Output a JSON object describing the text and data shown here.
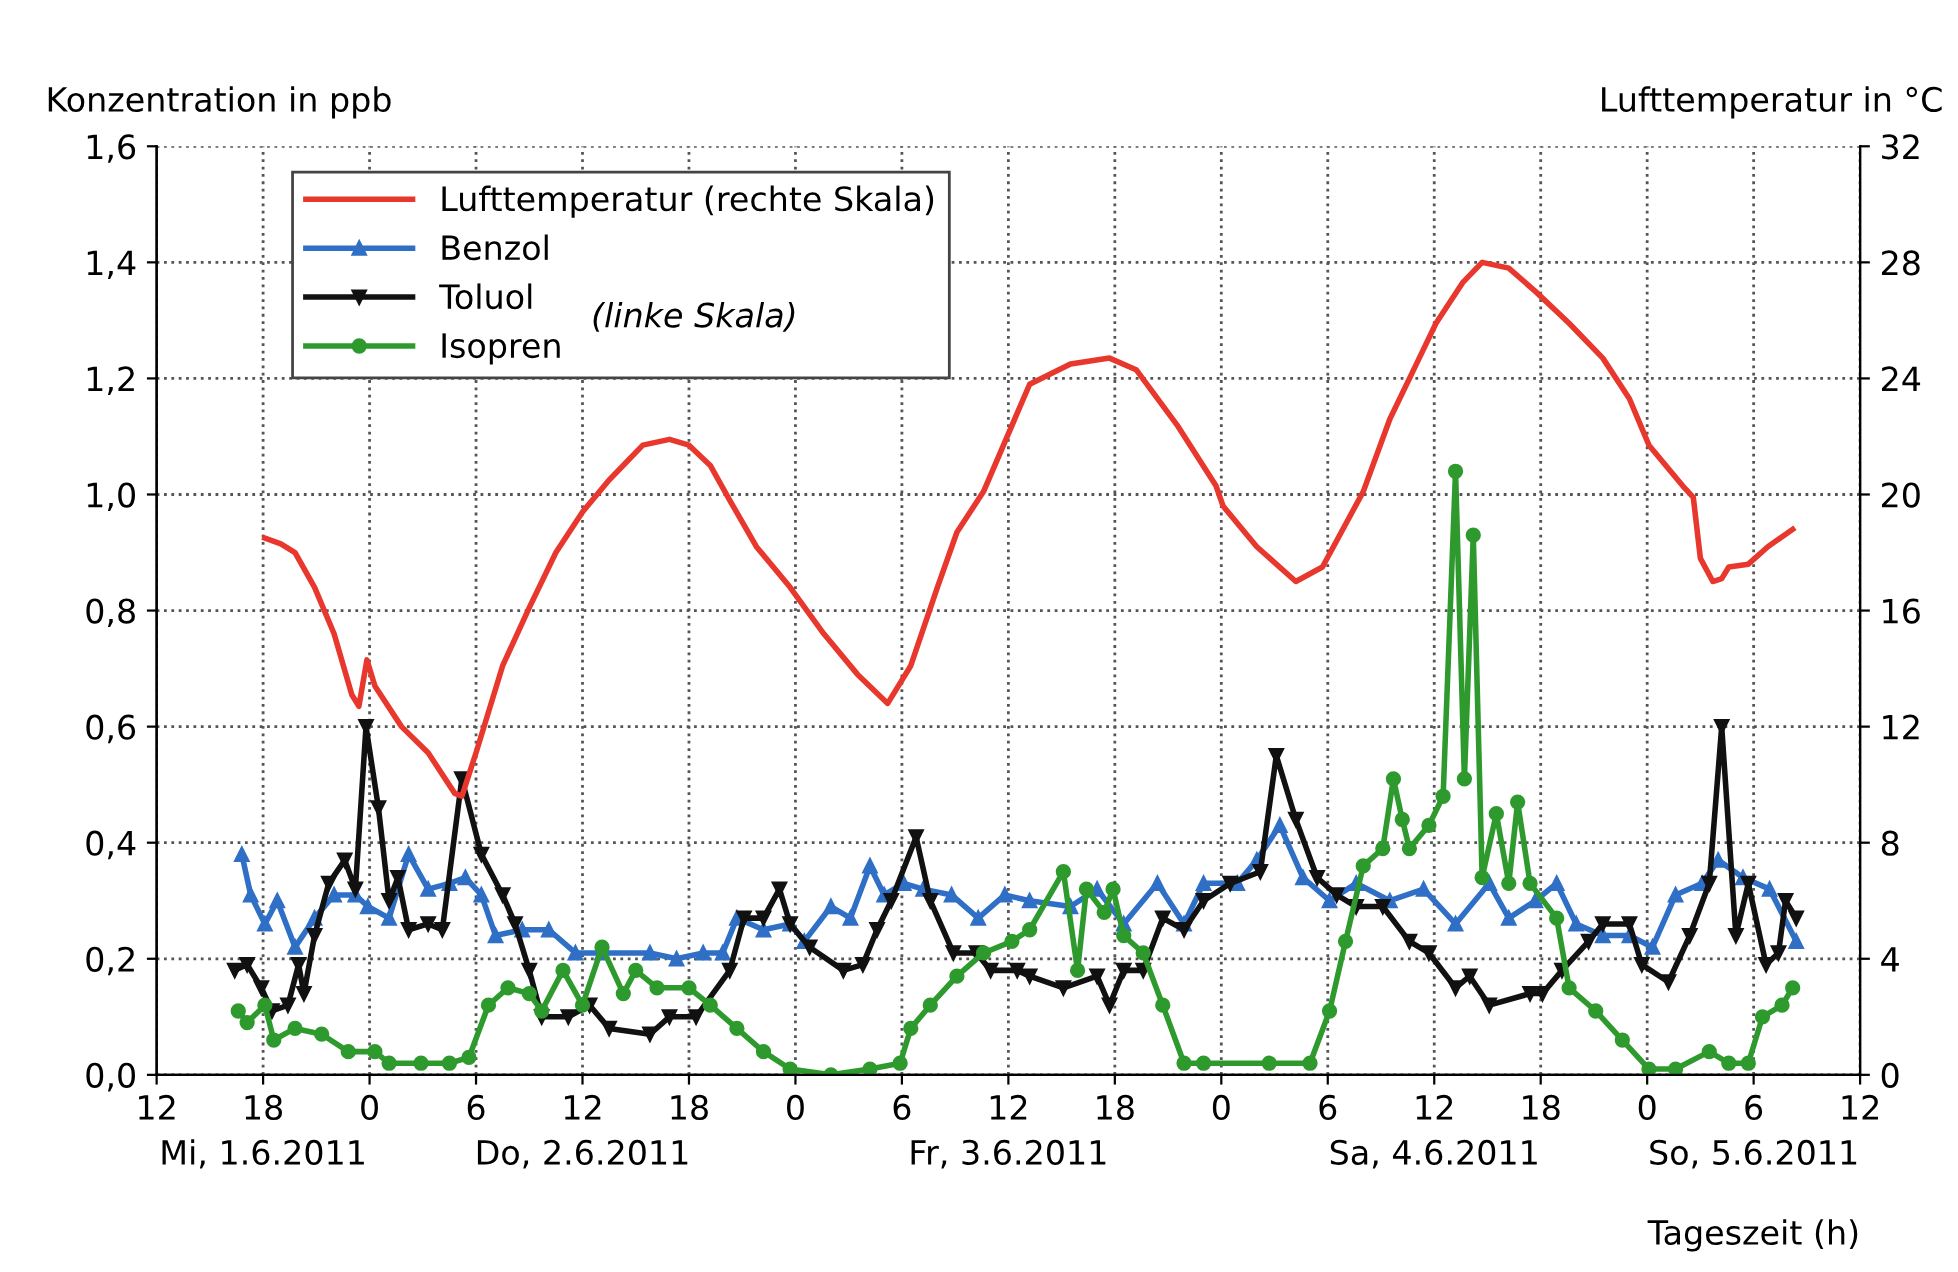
{
  "chart_data": {
    "type": "line",
    "xlabel": "Tageszeit (h)",
    "ylabel": "Konzentration in ppb",
    "y2label": "Lufttemperatur in °C",
    "xlim": [
      "2011-06-01T12:00",
      "2011-06-05T12:00"
    ],
    "xticks": [
      {
        "value": "2011-06-01T12:00",
        "label": "12"
      },
      {
        "value": "2011-06-01T18:00",
        "label": "18\nMi, 1.6.2011"
      },
      {
        "value": "2011-06-02T00:00",
        "label": "0"
      },
      {
        "value": "2011-06-02T06:00",
        "label": "6"
      },
      {
        "value": "2011-06-02T12:00",
        "label": "12\nDo, 2.6.2011"
      },
      {
        "value": "2011-06-02T18:00",
        "label": "18"
      },
      {
        "value": "2011-06-03T00:00",
        "label": "0"
      },
      {
        "value": "2011-06-03T06:00",
        "label": "6"
      },
      {
        "value": "2011-06-03T12:00",
        "label": "12\nFr, 3.6.2011"
      },
      {
        "value": "2011-06-03T18:00",
        "label": "18"
      },
      {
        "value": "2011-06-04T00:00",
        "label": "0"
      },
      {
        "value": "2011-06-04T06:00",
        "label": "6"
      },
      {
        "value": "2011-06-04T12:00",
        "label": "12\nSa, 4.6.2011"
      },
      {
        "value": "2011-06-04T18:00",
        "label": "18"
      },
      {
        "value": "2011-06-05T00:00",
        "label": "0"
      },
      {
        "value": "2011-06-05T06:00",
        "label": "6\nSo, 5.6.2011"
      },
      {
        "value": "2011-06-05T12:00",
        "label": "12"
      }
    ],
    "ylim": [
      0,
      1.6
    ],
    "yticks": [
      {
        "value": 0,
        "label": "0,0"
      },
      {
        "value": 0.2,
        "label": "0,2"
      },
      {
        "value": 0.4,
        "label": "0,4"
      },
      {
        "value": 0.6,
        "label": "0,6"
      },
      {
        "value": 0.8,
        "label": "0,8"
      },
      {
        "value": 1.0,
        "label": "1,0"
      },
      {
        "value": 1.2,
        "label": "1,2"
      },
      {
        "value": 1.4,
        "label": "1,4"
      },
      {
        "value": 1.6,
        "label": "1,6"
      }
    ],
    "y2lim": [
      0,
      32
    ],
    "y2ticks": [
      0,
      4,
      8,
      12,
      16,
      20,
      24,
      28,
      32
    ],
    "grid": true,
    "legend": "top left",
    "annotations": [
      "(linke Skala)"
    ],
    "series": [
      {
        "name": "Lufttemperatur (rechte Skala)",
        "color": "#e8372c",
        "axis": "y2",
        "marker": "none",
        "x": [
          "2011-06-01T18:06",
          "2011-06-01T19:00",
          "2011-06-01T19:48",
          "2011-06-01T20:54",
          "2011-06-01T22:00",
          "2011-06-01T23:00",
          "2011-06-01T23:24",
          "2011-06-01T23:51",
          "2011-06-02T00:18",
          "2011-06-02T01:48",
          "2011-06-02T03:18",
          "2011-06-02T04:48",
          "2011-06-02T05:12",
          "2011-06-02T06:00",
          "2011-06-02T07:30",
          "2011-06-02T09:00",
          "2011-06-02T10:30",
          "2011-06-02T12:00",
          "2011-06-02T13:30",
          "2011-06-02T15:24",
          "2011-06-02T16:54",
          "2011-06-02T18:00",
          "2011-06-02T19:12",
          "2011-06-02T20:18",
          "2011-06-02T21:48",
          "2011-06-02T23:42",
          "2011-06-03T01:36",
          "2011-06-03T03:30",
          "2011-06-03T05:12",
          "2011-06-03T06:30",
          "2011-06-03T08:00",
          "2011-06-03T09:06",
          "2011-06-03T10:36",
          "2011-06-03T13:12",
          "2011-06-03T15:30",
          "2011-06-03T17:42",
          "2011-06-03T19:12",
          "2011-06-03T21:30",
          "2011-06-03T23:42",
          "2011-06-04T00:06",
          "2011-06-04T02:00",
          "2011-06-04T04:12",
          "2011-06-04T05:42",
          "2011-06-04T08:00",
          "2011-06-04T09:30",
          "2011-06-04T11:00",
          "2011-06-04T12:06",
          "2011-06-04T13:36",
          "2011-06-04T14:42",
          "2011-06-04T16:12",
          "2011-06-04T17:42",
          "2011-06-04T19:36",
          "2011-06-04T21:30",
          "2011-06-04T23:00",
          "2011-06-05T00:06",
          "2011-06-05T02:00",
          "2011-06-05T02:36",
          "2011-06-05T03:00",
          "2011-06-05T03:42",
          "2011-06-05T04:12",
          "2011-06-05T04:36",
          "2011-06-05T05:42",
          "2011-06-05T06:48",
          "2011-06-05T08:12"
        ],
        "values": [
          18.5,
          18.3,
          18.0,
          16.8,
          15.2,
          13.1,
          12.7,
          14.3,
          13.4,
          12.0,
          11.1,
          9.7,
          9.6,
          11.1,
          14.1,
          16.1,
          18.0,
          19.4,
          20.5,
          21.7,
          21.9,
          21.7,
          21.0,
          19.8,
          18.2,
          16.8,
          15.2,
          13.8,
          12.8,
          14.1,
          16.8,
          18.7,
          20.1,
          23.8,
          24.5,
          24.7,
          24.3,
          22.4,
          20.3,
          19.6,
          18.2,
          17.0,
          17.5,
          20.1,
          22.6,
          24.5,
          25.9,
          27.3,
          28.0,
          27.8,
          27.0,
          25.9,
          24.7,
          23.3,
          21.7,
          20.3,
          19.9,
          17.8,
          17.0,
          17.1,
          17.5,
          17.6,
          18.2,
          18.8
        ]
      },
      {
        "name": "Benzol",
        "color": "#2f6fc6",
        "marker": "triangle",
        "x": [
          "2011-06-01T16:48",
          "2011-06-01T17:18",
          "2011-06-01T18:06",
          "2011-06-01T18:48",
          "2011-06-01T19:48",
          "2011-06-01T20:54",
          "2011-06-01T22:00",
          "2011-06-01T23:12",
          "2011-06-01T23:54",
          "2011-06-02T01:06",
          "2011-06-02T02:12",
          "2011-06-02T03:18",
          "2011-06-02T04:30",
          "2011-06-02T05:24",
          "2011-06-02T06:18",
          "2011-06-02T07:06",
          "2011-06-02T08:36",
          "2011-06-02T10:06",
          "2011-06-02T11:36",
          "2011-06-02T13:06",
          "2011-06-02T15:48",
          "2011-06-02T17:18",
          "2011-06-02T18:48",
          "2011-06-02T19:54",
          "2011-06-02T20:42",
          "2011-06-02T22:12",
          "2011-06-02T23:42",
          "2011-06-03T00:30",
          "2011-06-03T02:00",
          "2011-06-03T03:06",
          "2011-06-03T04:12",
          "2011-06-03T05:00",
          "2011-06-03T06:06",
          "2011-06-03T07:12",
          "2011-06-03T08:48",
          "2011-06-03T10:18",
          "2011-06-03T11:48",
          "2011-06-03T13:12",
          "2011-06-03T15:30",
          "2011-06-03T17:00",
          "2011-06-03T18:30",
          "2011-06-03T20:24",
          "2011-06-03T21:54",
          "2011-06-03T23:00",
          "2011-06-04T00:54",
          "2011-06-04T02:00",
          "2011-06-04T03:18",
          "2011-06-04T04:36",
          "2011-06-04T06:06",
          "2011-06-04T07:36",
          "2011-06-04T09:30",
          "2011-06-04T11:24",
          "2011-06-04T13:12",
          "2011-06-04T15:06",
          "2011-06-04T16:12",
          "2011-06-04T17:42",
          "2011-06-04T18:54",
          "2011-06-04T20:00",
          "2011-06-04T21:30",
          "2011-06-04T23:00",
          "2011-06-05T00:18",
          "2011-06-05T01:36",
          "2011-06-05T03:06",
          "2011-06-05T04:00",
          "2011-06-05T05:24",
          "2011-06-05T06:54",
          "2011-06-05T08:24"
        ],
        "values": [
          0.38,
          0.31,
          0.26,
          0.3,
          0.22,
          0.27,
          0.31,
          0.31,
          0.29,
          0.27,
          0.38,
          0.32,
          0.33,
          0.34,
          0.31,
          0.24,
          0.25,
          0.25,
          0.21,
          0.21,
          0.21,
          0.2,
          0.21,
          0.21,
          0.27,
          0.25,
          0.26,
          0.23,
          0.29,
          0.27,
          0.36,
          0.31,
          0.33,
          0.32,
          0.31,
          0.27,
          0.31,
          0.3,
          0.29,
          0.32,
          0.26,
          0.33,
          0.26,
          0.33,
          0.33,
          0.37,
          0.43,
          0.34,
          0.3,
          0.33,
          0.3,
          0.32,
          0.26,
          0.33,
          0.27,
          0.3,
          0.33,
          0.26,
          0.24,
          0.24,
          0.22,
          0.31,
          0.33,
          0.37,
          0.34,
          0.32,
          0.23
        ]
      },
      {
        "name": "Toluol",
        "color": "#111111",
        "marker": "triangle_down",
        "x": [
          "2011-06-01T16:24",
          "2011-06-01T17:06",
          "2011-06-01T17:54",
          "2011-06-01T18:30",
          "2011-06-01T19:24",
          "2011-06-01T20:00",
          "2011-06-01T20:18",
          "2011-06-01T20:54",
          "2011-06-01T21:42",
          "2011-06-01T22:36",
          "2011-06-01T23:12",
          "2011-06-01T23:48",
          "2011-06-02T00:30",
          "2011-06-02T01:06",
          "2011-06-02T01:36",
          "2011-06-02T02:12",
          "2011-06-02T03:18",
          "2011-06-02T04:06",
          "2011-06-02T05:12",
          "2011-06-02T06:18",
          "2011-06-02T07:30",
          "2011-06-02T08:12",
          "2011-06-02T09:00",
          "2011-06-02T09:42",
          "2011-06-02T11:12",
          "2011-06-02T12:24",
          "2011-06-02T13:30",
          "2011-06-02T15:48",
          "2011-06-02T16:54",
          "2011-06-02T18:24",
          "2011-06-02T20:18",
          "2011-06-02T21:06",
          "2011-06-02T22:12",
          "2011-06-02T23:06",
          "2011-06-02T23:42",
          "2011-06-03T00:48",
          "2011-06-03T02:42",
          "2011-06-03T03:48",
          "2011-06-03T04:36",
          "2011-06-03T05:24",
          "2011-06-03T06:48",
          "2011-06-03T07:36",
          "2011-06-03T08:54",
          "2011-06-03T10:12",
          "2011-06-03T11:00",
          "2011-06-03T12:30",
          "2011-06-03T13:12",
          "2011-06-03T15:06",
          "2011-06-03T17:00",
          "2011-06-03T17:42",
          "2011-06-03T18:30",
          "2011-06-03T19:36",
          "2011-06-03T20:42",
          "2011-06-03T21:54",
          "2011-06-03T23:00",
          "2011-06-04T00:30",
          "2011-06-04T02:12",
          "2011-06-04T03:06",
          "2011-06-04T04:12",
          "2011-06-04T05:24",
          "2011-06-04T06:30",
          "2011-06-04T07:36",
          "2011-06-04T09:06",
          "2011-06-04T10:36",
          "2011-06-04T11:42",
          "2011-06-04T13:12",
          "2011-06-04T14:00",
          "2011-06-04T15:06",
          "2011-06-04T17:24",
          "2011-06-04T18:06",
          "2011-06-04T19:12",
          "2011-06-04T20:42",
          "2011-06-04T21:30",
          "2011-06-04T23:00",
          "2011-06-04T23:42",
          "2011-06-05T01:12",
          "2011-06-05T02:24",
          "2011-06-05T03:30",
          "2011-06-05T04:12",
          "2011-06-05T05:00",
          "2011-06-05T05:42",
          "2011-06-05T06:42",
          "2011-06-05T07:24",
          "2011-06-05T07:48",
          "2011-06-05T08:24"
        ],
        "values": [
          0.18,
          0.19,
          0.15,
          0.11,
          0.12,
          0.19,
          0.14,
          0.24,
          0.33,
          0.37,
          0.32,
          0.6,
          0.46,
          0.3,
          0.34,
          0.25,
          0.26,
          0.25,
          0.51,
          0.38,
          0.31,
          0.26,
          0.18,
          0.1,
          0.1,
          0.12,
          0.08,
          0.07,
          0.1,
          0.1,
          0.18,
          0.27,
          0.27,
          0.32,
          0.26,
          0.22,
          0.18,
          0.19,
          0.25,
          0.3,
          0.41,
          0.3,
          0.21,
          0.21,
          0.18,
          0.18,
          0.17,
          0.15,
          0.17,
          0.12,
          0.18,
          0.18,
          0.27,
          0.25,
          0.3,
          0.33,
          0.35,
          0.55,
          0.44,
          0.34,
          0.31,
          0.29,
          0.29,
          0.23,
          0.21,
          0.15,
          0.17,
          0.12,
          0.14,
          0.14,
          0.18,
          0.23,
          0.26,
          0.26,
          0.19,
          0.16,
          0.24,
          0.33,
          0.6,
          0.24,
          0.33,
          0.19,
          0.21,
          0.3,
          0.27
        ]
      },
      {
        "name": "Isopren",
        "color": "#2e9a2e",
        "marker": "circle",
        "x": [
          "2011-06-01T16:36",
          "2011-06-01T17:06",
          "2011-06-01T18:06",
          "2011-06-01T18:36",
          "2011-06-01T19:48",
          "2011-06-01T21:18",
          "2011-06-01T22:48",
          "2011-06-02T00:18",
          "2011-06-02T01:06",
          "2011-06-02T02:54",
          "2011-06-02T04:30",
          "2011-06-02T05:36",
          "2011-06-02T06:42",
          "2011-06-02T07:48",
          "2011-06-02T09:00",
          "2011-06-02T09:42",
          "2011-06-02T10:54",
          "2011-06-02T12:00",
          "2011-06-02T13:06",
          "2011-06-02T14:18",
          "2011-06-02T15:00",
          "2011-06-02T16:12",
          "2011-06-02T18:00",
          "2011-06-02T19:12",
          "2011-06-02T20:42",
          "2011-06-02T22:12",
          "2011-06-02T23:42",
          "2011-06-03T02:00",
          "2011-06-03T04:12",
          "2011-06-03T05:54",
          "2011-06-03T06:30",
          "2011-06-03T07:36",
          "2011-06-03T09:06",
          "2011-06-03T10:36",
          "2011-06-03T12:12",
          "2011-06-03T13:12",
          "2011-06-03T15:06",
          "2011-06-03T15:54",
          "2011-06-03T16:24",
          "2011-06-03T17:24",
          "2011-06-03T17:54",
          "2011-06-03T18:30",
          "2011-06-03T19:36",
          "2011-06-03T20:42",
          "2011-06-03T21:54",
          "2011-06-03T23:00",
          "2011-06-04T02:42",
          "2011-06-04T05:00",
          "2011-06-04T06:06",
          "2011-06-04T07:00",
          "2011-06-04T08:00",
          "2011-06-04T09:06",
          "2011-06-04T09:42",
          "2011-06-04T10:12",
          "2011-06-04T10:36",
          "2011-06-04T11:42",
          "2011-06-04T12:30",
          "2011-06-04T13:12",
          "2011-06-04T13:42",
          "2011-06-04T14:12",
          "2011-06-04T14:42",
          "2011-06-04T15:30",
          "2011-06-04T16:12",
          "2011-06-04T16:42",
          "2011-06-04T17:24",
          "2011-06-04T18:54",
          "2011-06-04T19:36",
          "2011-06-04T21:06",
          "2011-06-04T22:36",
          "2011-06-05T00:06",
          "2011-06-05T01:36",
          "2011-06-05T03:30",
          "2011-06-05T04:36",
          "2011-06-05T05:42",
          "2011-06-05T06:30",
          "2011-06-05T07:36",
          "2011-06-05T08:12"
        ],
        "values": [
          0.11,
          0.09,
          0.12,
          0.06,
          0.08,
          0.07,
          0.04,
          0.04,
          0.02,
          0.02,
          0.02,
          0.03,
          0.12,
          0.15,
          0.14,
          0.11,
          0.18,
          0.12,
          0.22,
          0.14,
          0.18,
          0.15,
          0.15,
          0.12,
          0.08,
          0.04,
          0.01,
          0.0,
          0.01,
          0.02,
          0.08,
          0.12,
          0.17,
          0.21,
          0.23,
          0.25,
          0.35,
          0.18,
          0.32,
          0.28,
          0.32,
          0.24,
          0.21,
          0.12,
          0.02,
          0.02,
          0.02,
          0.02,
          0.11,
          0.23,
          0.36,
          0.39,
          0.51,
          0.44,
          0.39,
          0.43,
          0.48,
          1.04,
          0.51,
          0.93,
          0.34,
          0.45,
          0.33,
          0.47,
          0.33,
          0.27,
          0.15,
          0.11,
          0.06,
          0.01,
          0.01,
          0.04,
          0.02,
          0.02,
          0.1,
          0.12,
          0.15
        ]
      }
    ]
  }
}
